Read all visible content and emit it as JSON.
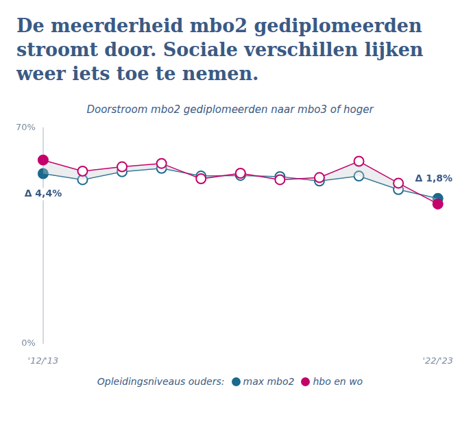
{
  "chart_data": {
    "type": "line",
    "title": "De meerderheid mbo2 gediplomeerden stroomt door. Sociale verschillen lijken weer iets toe te nemen.",
    "subtitle": "Doorstroom mbo2 gediplomeerden naar mbo3 of hoger",
    "categories": [
      "'12/'13",
      null,
      null,
      null,
      null,
      null,
      null,
      null,
      null,
      null,
      "'22/'23"
    ],
    "series": [
      {
        "name": "max mbo2",
        "color": "#1a6a8d",
        "values": [
          55.2,
          53.2,
          55.8,
          56.9,
          54.4,
          54.6,
          54.2,
          52.8,
          54.4,
          50.0,
          47.1
        ]
      },
      {
        "name": "hbo en wo",
        "color": "#c4006b",
        "values": [
          59.6,
          56.0,
          57.4,
          58.5,
          53.5,
          55.3,
          53.2,
          53.9,
          59.2,
          52.1,
          45.3
        ]
      }
    ],
    "ylim": [
      0,
      70
    ],
    "yticks": [
      {
        "value": 0,
        "label": "0%"
      },
      {
        "value": 70,
        "label": "70%"
      }
    ],
    "grid": false,
    "legend": "bottom",
    "legend_title": "Opleidingsniveaus ouders:",
    "marker": "circle",
    "annotations": [
      {
        "text": "Δ 4,4%",
        "category": "'12/'13"
      },
      {
        "text": "Δ 1,8%",
        "category": "'22/'23"
      }
    ]
  }
}
